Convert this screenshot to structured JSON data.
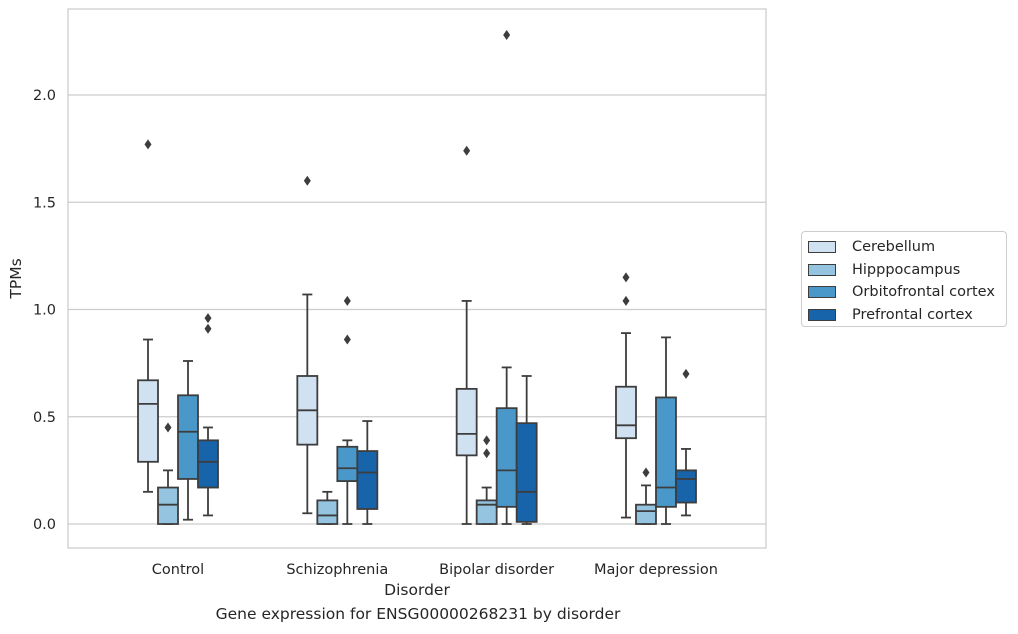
{
  "chart_data": {
    "type": "box",
    "title": "",
    "caption": "Gene expression for ENSG00000268231 by disorder",
    "xlabel": "Disorder",
    "ylabel": "TPMs",
    "ylim": [
      -0.11,
      2.4
    ],
    "yticks": [
      0.0,
      0.5,
      1.0,
      1.5,
      2.0
    ],
    "ytick_labels": [
      "0.0",
      "0.5",
      "1.0",
      "1.5",
      "2.0"
    ],
    "grid": "horizontal",
    "legend_position": "right",
    "categories": [
      "Control",
      "Schizophrenia",
      "Bipolar disorder",
      "Major depression"
    ],
    "series": [
      {
        "name": "Cerebellum",
        "color": "#d0e1f2",
        "boxes": [
          {
            "whisker_low": 0.15,
            "q1": 0.29,
            "median": 0.56,
            "q3": 0.67,
            "whisker_high": 0.86,
            "outliers": [
              1.77
            ]
          },
          {
            "whisker_low": 0.05,
            "q1": 0.37,
            "median": 0.53,
            "q3": 0.69,
            "whisker_high": 1.07,
            "outliers": [
              1.6
            ]
          },
          {
            "whisker_low": 0.0,
            "q1": 0.32,
            "median": 0.42,
            "q3": 0.63,
            "whisker_high": 1.04,
            "outliers": [
              1.74
            ]
          },
          {
            "whisker_low": 0.03,
            "q1": 0.4,
            "median": 0.46,
            "q3": 0.64,
            "whisker_high": 0.89,
            "outliers": [
              1.04,
              1.15
            ]
          }
        ]
      },
      {
        "name": "Hipppocampus",
        "color": "#94c4df",
        "boxes": [
          {
            "whisker_low": 0.0,
            "q1": 0.0,
            "median": 0.09,
            "q3": 0.17,
            "whisker_high": 0.25,
            "outliers": [
              0.45
            ]
          },
          {
            "whisker_low": 0.0,
            "q1": 0.0,
            "median": 0.04,
            "q3": 0.11,
            "whisker_high": 0.15,
            "outliers": []
          },
          {
            "whisker_low": 0.0,
            "q1": 0.0,
            "median": 0.09,
            "q3": 0.11,
            "whisker_high": 0.17,
            "outliers": [
              0.33,
              0.39
            ]
          },
          {
            "whisker_low": 0.0,
            "q1": 0.0,
            "median": 0.06,
            "q3": 0.09,
            "whisker_high": 0.18,
            "outliers": [
              0.24
            ]
          }
        ]
      },
      {
        "name": "Orbitofrontal cortex",
        "color": "#4a98c9",
        "boxes": [
          {
            "whisker_low": 0.02,
            "q1": 0.21,
            "median": 0.43,
            "q3": 0.6,
            "whisker_high": 0.76,
            "outliers": []
          },
          {
            "whisker_low": 0.0,
            "q1": 0.2,
            "median": 0.26,
            "q3": 0.36,
            "whisker_high": 0.39,
            "outliers": [
              0.86,
              1.04
            ]
          },
          {
            "whisker_low": 0.0,
            "q1": 0.08,
            "median": 0.25,
            "q3": 0.54,
            "whisker_high": 0.73,
            "outliers": [
              2.28
            ]
          },
          {
            "whisker_low": 0.0,
            "q1": 0.08,
            "median": 0.17,
            "q3": 0.59,
            "whisker_high": 0.87,
            "outliers": []
          }
        ]
      },
      {
        "name": "Prefrontal cortex",
        "color": "#1764ab",
        "boxes": [
          {
            "whisker_low": 0.04,
            "q1": 0.17,
            "median": 0.29,
            "q3": 0.39,
            "whisker_high": 0.45,
            "outliers": [
              0.91,
              0.96
            ]
          },
          {
            "whisker_low": 0.0,
            "q1": 0.07,
            "median": 0.24,
            "q3": 0.34,
            "whisker_high": 0.48,
            "outliers": []
          },
          {
            "whisker_low": 0.0,
            "q1": 0.01,
            "median": 0.15,
            "q3": 0.47,
            "whisker_high": 0.69,
            "outliers": []
          },
          {
            "whisker_low": 0.04,
            "q1": 0.1,
            "median": 0.21,
            "q3": 0.25,
            "whisker_high": 0.35,
            "outliers": [
              0.7
            ]
          }
        ]
      }
    ]
  }
}
